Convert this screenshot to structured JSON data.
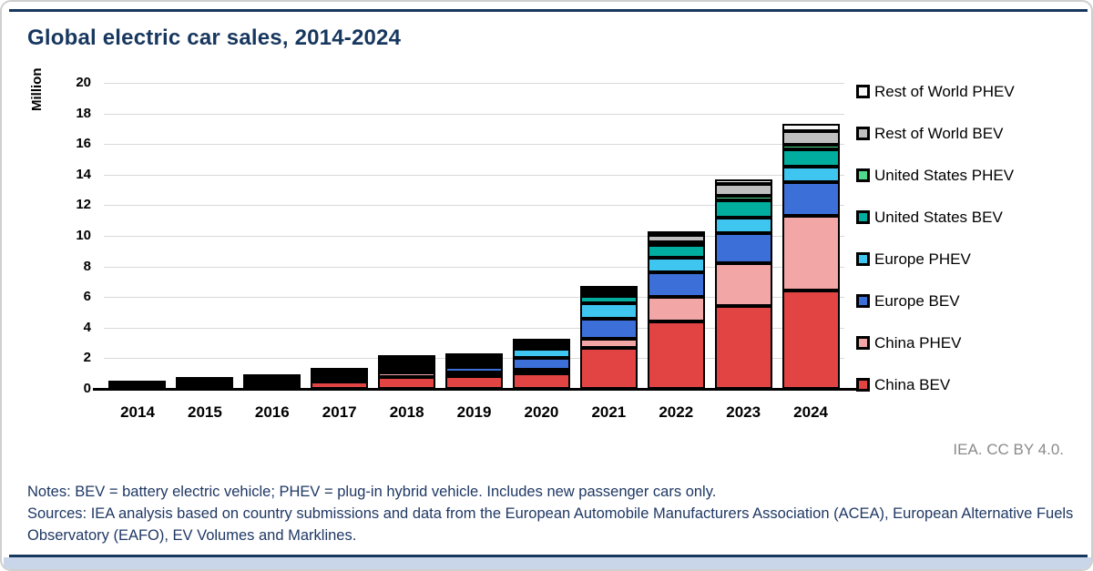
{
  "title": "Global electric car sales, 2014-2024",
  "attribution": "IEA. CC BY 4.0.",
  "notes": {
    "line1": "Notes: BEV = battery electric vehicle; PHEV = plug-in hybrid vehicle. Includes new passenger cars only.",
    "line2": "Sources: IEA analysis based on country submissions and data from the European Automobile Manufacturers Association (ACEA), European Alternative Fuels Observatory (EAFO), EV Volumes and Marklines."
  },
  "colors": {
    "title_text": "#17375e",
    "notes_text": "#1f3864",
    "rules": "#17375e",
    "grid": "#d9d9d9",
    "axis": "#000000",
    "attribution_text": "#8a8a8a"
  },
  "chart_data": {
    "type": "bar",
    "stacked": true,
    "title": "Global electric car sales, 2014-2024",
    "xlabel": "",
    "ylabel": "Million",
    "ylim": [
      0,
      20
    ],
    "ytick_step": 2,
    "grid": true,
    "legend_position": "right",
    "legend_order": "reverse-of-stack (top legend entry = top bar segment)",
    "categories": [
      "2014",
      "2015",
      "2016",
      "2017",
      "2018",
      "2019",
      "2020",
      "2021",
      "2022",
      "2023",
      "2024"
    ],
    "series": [
      {
        "name": "China BEV",
        "color": "#e24444",
        "values": [
          0.05,
          0.15,
          0.26,
          0.47,
          0.8,
          0.85,
          1.0,
          2.7,
          4.4,
          5.4,
          6.4
        ]
      },
      {
        "name": "China PHEV",
        "color": "#f2a6a6",
        "values": [
          0.02,
          0.06,
          0.08,
          0.11,
          0.27,
          0.23,
          0.25,
          0.6,
          1.6,
          2.8,
          4.9
        ]
      },
      {
        "name": "Europe BEV",
        "color": "#3c6fd7",
        "values": [
          0.06,
          0.09,
          0.09,
          0.14,
          0.2,
          0.36,
          0.75,
          1.3,
          1.6,
          2.0,
          2.2
        ]
      },
      {
        "name": "Europe PHEV",
        "color": "#3fc6f0",
        "values": [
          0.04,
          0.08,
          0.1,
          0.13,
          0.18,
          0.2,
          0.62,
          1.0,
          1.0,
          1.0,
          1.0
        ]
      },
      {
        "name": "United States BEV",
        "color": "#00ad9f",
        "values": [
          0.06,
          0.07,
          0.09,
          0.1,
          0.24,
          0.24,
          0.23,
          0.47,
          0.8,
          1.1,
          1.15
        ]
      },
      {
        "name": "United States PHEV",
        "color": "#4fd98c",
        "values": [
          0.05,
          0.04,
          0.07,
          0.09,
          0.12,
          0.08,
          0.07,
          0.17,
          0.2,
          0.3,
          0.3
        ]
      },
      {
        "name": "Rest of World BEV",
        "color": "#bfbfbf",
        "values": [
          0.02,
          0.04,
          0.04,
          0.12,
          0.13,
          0.15,
          0.1,
          0.25,
          0.45,
          0.8,
          0.9
        ]
      },
      {
        "name": "Rest of World PHEV",
        "color": "#f7f7f7",
        "values": [
          0.01,
          0.02,
          0.02,
          0.04,
          0.06,
          0.06,
          0.05,
          0.1,
          0.15,
          0.3,
          0.5
        ]
      }
    ],
    "approx_totals": [
      0.31,
      0.55,
      0.75,
      1.2,
      2.0,
      2.17,
      3.07,
      6.59,
      10.2,
      13.7,
      17.35
    ]
  }
}
